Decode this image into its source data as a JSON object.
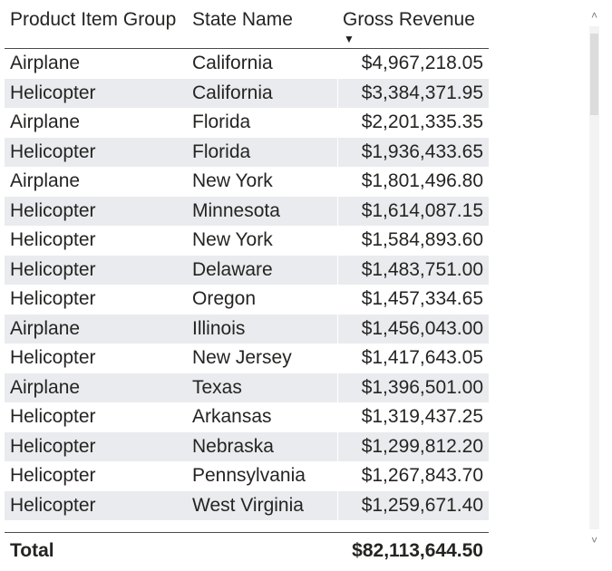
{
  "table": {
    "headers": {
      "product_item_group": "Product Item Group",
      "state_name": "State Name",
      "gross_revenue": "Gross Revenue"
    },
    "sort_icon": "sort-descending-icon",
    "rows": [
      {
        "group": "Airplane",
        "state": "California",
        "revenue": "$4,967,218.05"
      },
      {
        "group": "Helicopter",
        "state": "California",
        "revenue": "$3,384,371.95"
      },
      {
        "group": "Airplane",
        "state": "Florida",
        "revenue": "$2,201,335.35"
      },
      {
        "group": "Helicopter",
        "state": "Florida",
        "revenue": "$1,936,433.65"
      },
      {
        "group": "Airplane",
        "state": "New York",
        "revenue": "$1,801,496.80"
      },
      {
        "group": "Helicopter",
        "state": "Minnesota",
        "revenue": "$1,614,087.15"
      },
      {
        "group": "Helicopter",
        "state": "New York",
        "revenue": "$1,584,893.60"
      },
      {
        "group": "Helicopter",
        "state": "Delaware",
        "revenue": "$1,483,751.00"
      },
      {
        "group": "Helicopter",
        "state": "Oregon",
        "revenue": "$1,457,334.65"
      },
      {
        "group": "Airplane",
        "state": "Illinois",
        "revenue": "$1,456,043.00"
      },
      {
        "group": "Helicopter",
        "state": "New Jersey",
        "revenue": "$1,417,643.05"
      },
      {
        "group": "Airplane",
        "state": "Texas",
        "revenue": "$1,396,501.00"
      },
      {
        "group": "Helicopter",
        "state": "Arkansas",
        "revenue": "$1,319,437.25"
      },
      {
        "group": "Helicopter",
        "state": "Nebraska",
        "revenue": "$1,299,812.20"
      },
      {
        "group": "Helicopter",
        "state": "Pennsylvania",
        "revenue": "$1,267,843.70"
      },
      {
        "group": "Helicopter",
        "state": "West Virginia",
        "revenue": "$1,259,671.40"
      }
    ],
    "total": {
      "label": "Total",
      "revenue": "$82,113,644.50"
    }
  },
  "colors": {
    "text": "#252423",
    "alt_row": "#eaebee",
    "rule": "#4a4a4a"
  }
}
